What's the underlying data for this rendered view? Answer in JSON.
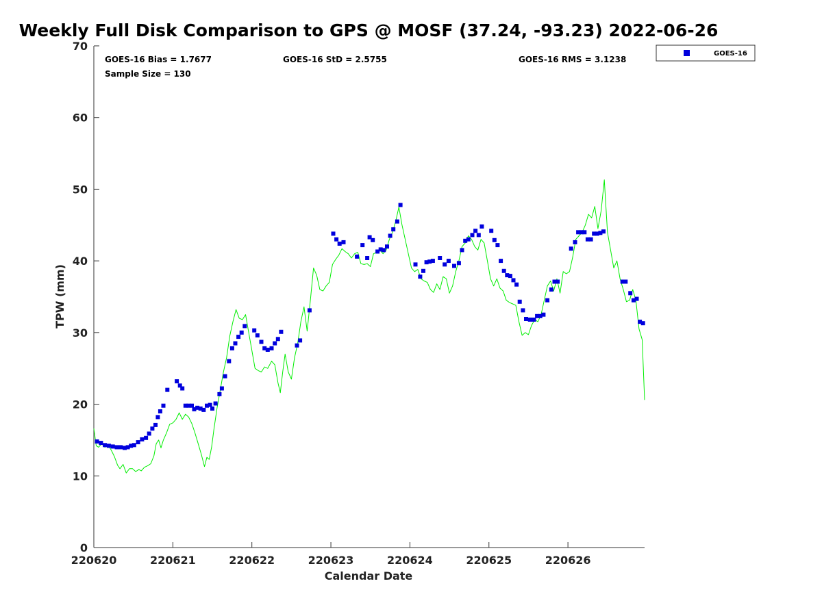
{
  "chart_data": {
    "type": "scatter",
    "title": "Weekly Full Disk Comparison to GPS @ MOSF (37.24, -93.23) 2022-06-26",
    "xlabel": "Calendar Date",
    "ylabel": "TPW (mm)",
    "xlim": [
      0,
      6.97
    ],
    "ylim": [
      0,
      70
    ],
    "grid": false,
    "legend_position": "top-right",
    "x_ticks": [
      {
        "value": 0,
        "label": "220620"
      },
      {
        "value": 1,
        "label": "220621"
      },
      {
        "value": 2,
        "label": "220622"
      },
      {
        "value": 3,
        "label": "220623"
      },
      {
        "value": 4,
        "label": "220624"
      },
      {
        "value": 5,
        "label": "220625"
      },
      {
        "value": 6,
        "label": "220626"
      }
    ],
    "y_ticks": [
      0,
      10,
      20,
      30,
      40,
      50,
      60,
      70
    ],
    "stats": {
      "bias": "GOES-16 Bias = 1.7677",
      "std": "GOES-16 StD = 2.5755",
      "rms": "GOES-16 RMS = 3.1238",
      "sample": "Sample Size = 130"
    },
    "series": [
      {
        "name": "GOES-16",
        "kind": "markers",
        "color": "#0000dd",
        "points": [
          [
            0.04,
            14.8
          ],
          [
            0.09,
            14.6
          ],
          [
            0.14,
            14.3
          ],
          [
            0.19,
            14.2
          ],
          [
            0.24,
            14.1
          ],
          [
            0.29,
            14.0
          ],
          [
            0.34,
            14.0
          ],
          [
            0.39,
            13.9
          ],
          [
            0.43,
            14.0
          ],
          [
            0.47,
            14.2
          ],
          [
            0.51,
            14.3
          ],
          [
            0.56,
            14.7
          ],
          [
            0.61,
            15.1
          ],
          [
            0.66,
            15.3
          ],
          [
            0.7,
            15.9
          ],
          [
            0.74,
            16.6
          ],
          [
            0.78,
            17.1
          ],
          [
            0.81,
            18.2
          ],
          [
            0.84,
            19.0
          ],
          [
            0.88,
            19.8
          ],
          [
            0.93,
            22.0
          ],
          [
            1.05,
            23.2
          ],
          [
            1.09,
            22.6
          ],
          [
            1.12,
            22.2
          ],
          [
            1.16,
            19.8
          ],
          [
            1.2,
            19.8
          ],
          [
            1.24,
            19.8
          ],
          [
            1.27,
            19.3
          ],
          [
            1.31,
            19.5
          ],
          [
            1.35,
            19.4
          ],
          [
            1.39,
            19.2
          ],
          [
            1.43,
            19.8
          ],
          [
            1.47,
            19.9
          ],
          [
            1.5,
            19.4
          ],
          [
            1.54,
            20.1
          ],
          [
            1.59,
            21.4
          ],
          [
            1.62,
            22.2
          ],
          [
            1.66,
            23.9
          ],
          [
            1.71,
            26.0
          ],
          [
            1.75,
            27.8
          ],
          [
            1.79,
            28.5
          ],
          [
            1.83,
            29.4
          ],
          [
            1.87,
            30.0
          ],
          [
            1.91,
            30.9
          ],
          [
            2.03,
            30.3
          ],
          [
            2.07,
            29.6
          ],
          [
            2.12,
            28.7
          ],
          [
            2.16,
            27.8
          ],
          [
            2.2,
            27.6
          ],
          [
            2.25,
            27.8
          ],
          [
            2.29,
            28.5
          ],
          [
            2.33,
            29.1
          ],
          [
            2.37,
            30.1
          ],
          [
            2.57,
            28.2
          ],
          [
            2.61,
            28.9
          ],
          [
            2.73,
            33.1
          ],
          [
            3.03,
            43.8
          ],
          [
            3.07,
            43.0
          ],
          [
            3.11,
            42.4
          ],
          [
            3.16,
            42.6
          ],
          [
            3.33,
            40.6
          ],
          [
            3.4,
            42.2
          ],
          [
            3.46,
            40.4
          ],
          [
            3.49,
            43.3
          ],
          [
            3.53,
            42.9
          ],
          [
            3.59,
            41.3
          ],
          [
            3.63,
            41.6
          ],
          [
            3.67,
            41.5
          ],
          [
            3.71,
            42.0
          ],
          [
            3.75,
            43.5
          ],
          [
            3.79,
            44.4
          ],
          [
            3.84,
            45.5
          ],
          [
            3.88,
            47.8
          ],
          [
            4.07,
            39.5
          ],
          [
            4.13,
            37.8
          ],
          [
            4.17,
            38.6
          ],
          [
            4.21,
            39.8
          ],
          [
            4.25,
            39.9
          ],
          [
            4.29,
            40.0
          ],
          [
            4.38,
            40.4
          ],
          [
            4.44,
            39.5
          ],
          [
            4.49,
            40.0
          ],
          [
            4.56,
            39.3
          ],
          [
            4.62,
            39.7
          ],
          [
            4.66,
            41.5
          ],
          [
            4.7,
            42.8
          ],
          [
            4.74,
            43.0
          ],
          [
            4.79,
            43.6
          ],
          [
            4.83,
            44.2
          ],
          [
            4.87,
            43.6
          ],
          [
            4.91,
            44.8
          ],
          [
            5.03,
            44.2
          ],
          [
            5.07,
            42.9
          ],
          [
            5.11,
            42.2
          ],
          [
            5.15,
            40.0
          ],
          [
            5.19,
            38.6
          ],
          [
            5.23,
            38.0
          ],
          [
            5.27,
            37.9
          ],
          [
            5.31,
            37.3
          ],
          [
            5.35,
            36.7
          ],
          [
            5.39,
            34.3
          ],
          [
            5.43,
            33.1
          ],
          [
            5.47,
            31.9
          ],
          [
            5.52,
            31.8
          ],
          [
            5.57,
            31.8
          ],
          [
            5.61,
            32.3
          ],
          [
            5.65,
            32.3
          ],
          [
            5.69,
            32.5
          ],
          [
            5.74,
            34.5
          ],
          [
            5.79,
            36.0
          ],
          [
            5.83,
            37.1
          ],
          [
            5.87,
            37.1
          ],
          [
            6.04,
            41.7
          ],
          [
            6.09,
            42.6
          ],
          [
            6.13,
            44.0
          ],
          [
            6.17,
            44.0
          ],
          [
            6.21,
            44.0
          ],
          [
            6.25,
            43.0
          ],
          [
            6.29,
            43.0
          ],
          [
            6.33,
            43.8
          ],
          [
            6.37,
            43.8
          ],
          [
            6.41,
            43.9
          ],
          [
            6.45,
            44.1
          ],
          [
            6.69,
            37.1
          ],
          [
            6.73,
            37.1
          ],
          [
            6.79,
            35.5
          ],
          [
            6.83,
            34.5
          ],
          [
            6.87,
            34.7
          ],
          [
            6.91,
            31.5
          ],
          [
            6.95,
            31.3
          ]
        ]
      },
      {
        "name": "GPS",
        "kind": "line",
        "color": "#00ee00",
        "points": [
          [
            0.0,
            16.6
          ],
          [
            0.03,
            14.2
          ],
          [
            0.06,
            14.0
          ],
          [
            0.1,
            14.5
          ],
          [
            0.14,
            14.0
          ],
          [
            0.18,
            14.3
          ],
          [
            0.22,
            13.6
          ],
          [
            0.26,
            12.7
          ],
          [
            0.3,
            11.5
          ],
          [
            0.33,
            11.0
          ],
          [
            0.37,
            11.6
          ],
          [
            0.41,
            10.4
          ],
          [
            0.45,
            11.0
          ],
          [
            0.49,
            11.0
          ],
          [
            0.53,
            10.6
          ],
          [
            0.57,
            10.9
          ],
          [
            0.6,
            10.7
          ],
          [
            0.64,
            11.2
          ],
          [
            0.68,
            11.4
          ],
          [
            0.72,
            11.7
          ],
          [
            0.76,
            12.8
          ],
          [
            0.79,
            14.5
          ],
          [
            0.82,
            15.0
          ],
          [
            0.85,
            13.9
          ],
          [
            0.88,
            15.0
          ],
          [
            0.92,
            16.0
          ],
          [
            0.96,
            17.2
          ],
          [
            1.0,
            17.4
          ],
          [
            1.04,
            17.9
          ],
          [
            1.08,
            18.8
          ],
          [
            1.12,
            17.9
          ],
          [
            1.16,
            18.6
          ],
          [
            1.2,
            18.2
          ],
          [
            1.24,
            17.3
          ],
          [
            1.28,
            16.0
          ],
          [
            1.32,
            14.5
          ],
          [
            1.36,
            13.0
          ],
          [
            1.4,
            11.3
          ],
          [
            1.43,
            12.6
          ],
          [
            1.46,
            12.3
          ],
          [
            1.49,
            14.0
          ],
          [
            1.52,
            16.5
          ],
          [
            1.56,
            19.5
          ],
          [
            1.6,
            22.0
          ],
          [
            1.64,
            24.5
          ],
          [
            1.68,
            26.5
          ],
          [
            1.72,
            29.5
          ],
          [
            1.76,
            31.5
          ],
          [
            1.8,
            33.2
          ],
          [
            1.84,
            32.0
          ],
          [
            1.88,
            31.8
          ],
          [
            1.92,
            32.5
          ],
          [
            1.96,
            30.0
          ],
          [
            2.0,
            27.5
          ],
          [
            2.04,
            25.0
          ],
          [
            2.08,
            24.7
          ],
          [
            2.12,
            24.5
          ],
          [
            2.16,
            25.2
          ],
          [
            2.2,
            25.0
          ],
          [
            2.25,
            26.0
          ],
          [
            2.29,
            25.5
          ],
          [
            2.33,
            23.0
          ],
          [
            2.36,
            21.6
          ],
          [
            2.39,
            24.5
          ],
          [
            2.42,
            27.0
          ],
          [
            2.46,
            24.5
          ],
          [
            2.5,
            23.5
          ],
          [
            2.54,
            26.5
          ],
          [
            2.58,
            28.5
          ],
          [
            2.62,
            31.5
          ],
          [
            2.66,
            33.6
          ],
          [
            2.7,
            30.2
          ],
          [
            2.74,
            34.5
          ],
          [
            2.78,
            39.0
          ],
          [
            2.82,
            38.0
          ],
          [
            2.86,
            36.0
          ],
          [
            2.9,
            35.8
          ],
          [
            2.94,
            36.5
          ],
          [
            2.98,
            37.0
          ],
          [
            3.02,
            39.5
          ],
          [
            3.06,
            40.2
          ],
          [
            3.1,
            40.8
          ],
          [
            3.14,
            41.7
          ],
          [
            3.18,
            41.3
          ],
          [
            3.22,
            41.0
          ],
          [
            3.26,
            40.4
          ],
          [
            3.3,
            41.0
          ],
          [
            3.34,
            41.2
          ],
          [
            3.38,
            39.6
          ],
          [
            3.42,
            39.5
          ],
          [
            3.46,
            39.6
          ],
          [
            3.5,
            39.2
          ],
          [
            3.54,
            41.0
          ],
          [
            3.58,
            41.2
          ],
          [
            3.62,
            41.5
          ],
          [
            3.66,
            41.0
          ],
          [
            3.7,
            41.5
          ],
          [
            3.74,
            43.0
          ],
          [
            3.78,
            44.0
          ],
          [
            3.82,
            45.5
          ],
          [
            3.86,
            47.5
          ],
          [
            3.9,
            45.0
          ],
          [
            3.94,
            43.0
          ],
          [
            3.98,
            41.0
          ],
          [
            4.02,
            39.0
          ],
          [
            4.06,
            38.5
          ],
          [
            4.1,
            38.8
          ],
          [
            4.14,
            37.5
          ],
          [
            4.18,
            37.2
          ],
          [
            4.22,
            37.0
          ],
          [
            4.26,
            36.0
          ],
          [
            4.3,
            35.6
          ],
          [
            4.34,
            36.8
          ],
          [
            4.38,
            36.0
          ],
          [
            4.42,
            37.8
          ],
          [
            4.46,
            37.5
          ],
          [
            4.5,
            35.5
          ],
          [
            4.54,
            36.5
          ],
          [
            4.58,
            38.5
          ],
          [
            4.62,
            40.0
          ],
          [
            4.66,
            42.0
          ],
          [
            4.7,
            42.5
          ],
          [
            4.74,
            43.5
          ],
          [
            4.78,
            43.0
          ],
          [
            4.82,
            42.0
          ],
          [
            4.86,
            41.5
          ],
          [
            4.9,
            43.0
          ],
          [
            4.94,
            42.5
          ],
          [
            4.98,
            40.0
          ],
          [
            5.02,
            37.5
          ],
          [
            5.06,
            36.5
          ],
          [
            5.1,
            37.5
          ],
          [
            5.14,
            36.2
          ],
          [
            5.18,
            35.8
          ],
          [
            5.22,
            34.5
          ],
          [
            5.26,
            34.2
          ],
          [
            5.3,
            34.0
          ],
          [
            5.34,
            33.8
          ],
          [
            5.38,
            31.5
          ],
          [
            5.42,
            29.6
          ],
          [
            5.46,
            30.0
          ],
          [
            5.5,
            29.7
          ],
          [
            5.54,
            31.0
          ],
          [
            5.58,
            31.8
          ],
          [
            5.62,
            31.5
          ],
          [
            5.66,
            32.5
          ],
          [
            5.7,
            34.5
          ],
          [
            5.74,
            36.5
          ],
          [
            5.78,
            37.2
          ],
          [
            5.82,
            35.8
          ],
          [
            5.86,
            37.5
          ],
          [
            5.9,
            35.5
          ],
          [
            5.94,
            38.5
          ],
          [
            5.98,
            38.2
          ],
          [
            6.02,
            38.5
          ],
          [
            6.06,
            40.5
          ],
          [
            6.1,
            43.0
          ],
          [
            6.14,
            43.5
          ],
          [
            6.18,
            44.0
          ],
          [
            6.22,
            45.0
          ],
          [
            6.26,
            46.5
          ],
          [
            6.3,
            46.0
          ],
          [
            6.34,
            47.6
          ],
          [
            6.38,
            44.5
          ],
          [
            6.42,
            47.0
          ],
          [
            6.46,
            51.3
          ],
          [
            6.5,
            44.0
          ],
          [
            6.54,
            41.5
          ],
          [
            6.58,
            39.0
          ],
          [
            6.62,
            40.0
          ],
          [
            6.66,
            37.5
          ],
          [
            6.7,
            36.0
          ],
          [
            6.74,
            34.3
          ],
          [
            6.78,
            34.5
          ],
          [
            6.82,
            36.0
          ],
          [
            6.86,
            34.5
          ],
          [
            6.9,
            30.5
          ],
          [
            6.94,
            29.0
          ],
          [
            6.97,
            20.6
          ]
        ]
      }
    ]
  }
}
